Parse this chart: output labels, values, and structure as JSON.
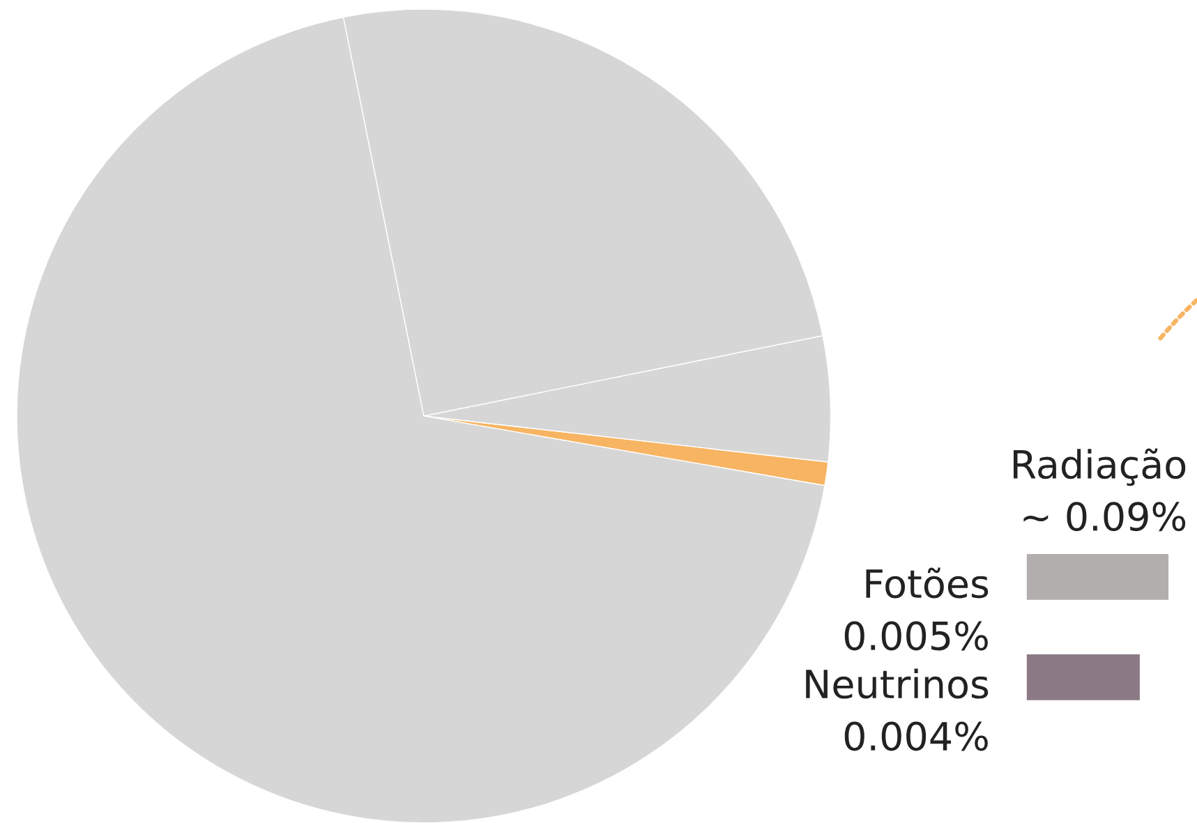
{
  "chart_data": {
    "type": "pie",
    "categories": [
      null,
      null,
      null,
      null
    ],
    "values": [
      0.93,
      4.97,
      25.0,
      69.1
    ],
    "colors": [
      "#f7b462",
      "#d6d6d6",
      "#d6d6d6",
      "#d6d6d6"
    ],
    "annotations": [
      "Radiação\n~ 0.09%",
      "Fotões\n0.005%",
      "Neutrinos\n0.004%"
    ]
  }
}
